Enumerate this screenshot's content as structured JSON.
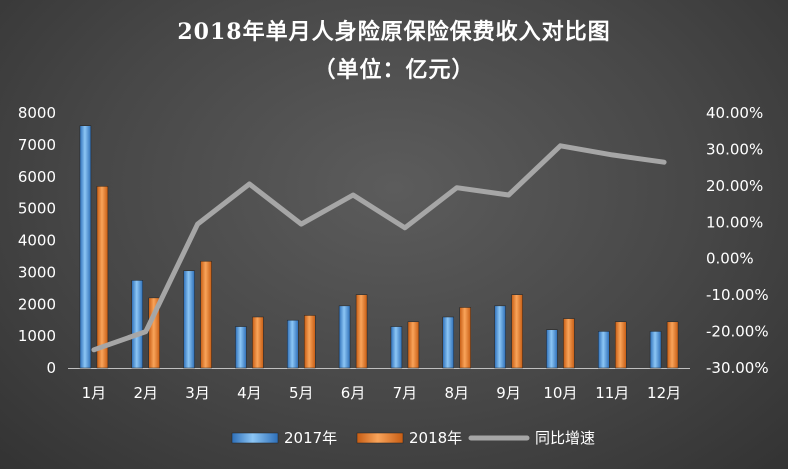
{
  "chart_data": {
    "type": "bar",
    "title": "2018年单月人身险原保险保费收入对比图",
    "subtitle": "（单位：亿元）",
    "categories": [
      "1月",
      "2月",
      "3月",
      "4月",
      "5月",
      "6月",
      "7月",
      "8月",
      "9月",
      "10月",
      "11月",
      "12月"
    ],
    "series": [
      {
        "name": "2017年",
        "type": "bar",
        "axis": "left",
        "color": "#5aa6e6",
        "values": [
          7600,
          2750,
          3050,
          1300,
          1500,
          1950,
          1300,
          1600,
          1950,
          1200,
          1150,
          1150
        ]
      },
      {
        "name": "2018年",
        "type": "bar",
        "axis": "left",
        "color": "#f07f2c",
        "values": [
          5700,
          2200,
          3350,
          1600,
          1650,
          2300,
          1450,
          1900,
          2300,
          1550,
          1450,
          1450
        ]
      },
      {
        "name": "同比增速",
        "type": "line",
        "axis": "right",
        "color": "#a6a6a6",
        "unit": "%",
        "values": [
          -25.0,
          -20.0,
          9.5,
          20.5,
          9.5,
          17.5,
          8.5,
          19.5,
          17.5,
          31.0,
          28.5,
          26.5
        ]
      }
    ],
    "y_left": {
      "lim": [
        0,
        8000
      ],
      "ticks": [
        "0",
        "1000",
        "2000",
        "3000",
        "4000",
        "5000",
        "6000",
        "7000",
        "8000"
      ]
    },
    "y_right": {
      "lim": [
        -30,
        40
      ],
      "ticks": [
        "-30.00%",
        "-20.00%",
        "-10.00%",
        "0.00%",
        "10.00%",
        "20.00%",
        "30.00%",
        "40.00%"
      ]
    },
    "grid": false,
    "legend": "bottom"
  }
}
